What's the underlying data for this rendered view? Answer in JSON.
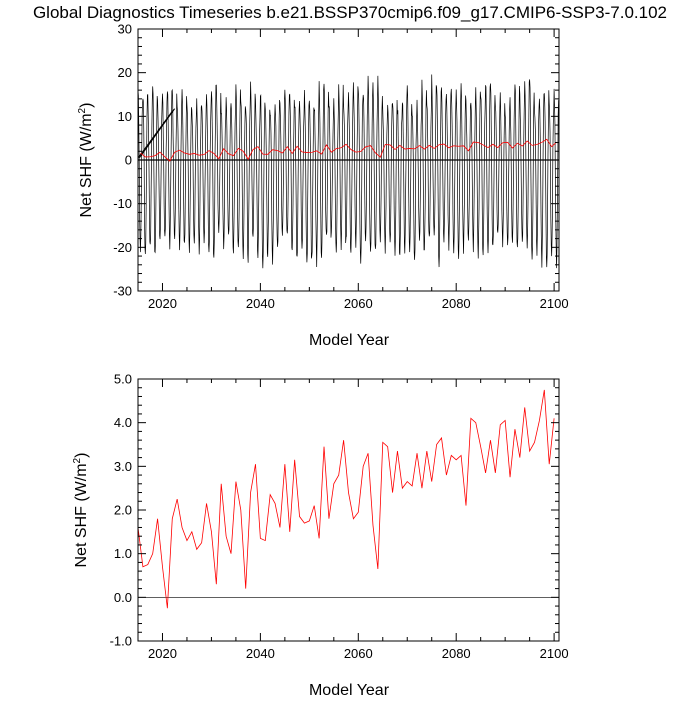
{
  "title": "Global Diagnostics Timeseries b.e21.BSSP370cmip6.f09_g17.CMIP6-SSP3-7.0.102",
  "colors": {
    "annual": "#ff0000",
    "monthly": "#000000",
    "axis": "#000000"
  },
  "chart_data": [
    {
      "type": "line",
      "panel": "top",
      "xlabel": "Model Year",
      "ylabel_main": "Net SHF (W/m",
      "ylabel_sup": "2",
      "ylabel_close": ")",
      "xlim": [
        2015,
        2101
      ],
      "ylim": [
        -30,
        30
      ],
      "xticks": [
        2020,
        2040,
        2060,
        2080,
        2100
      ],
      "xtick_labels": [
        "2020",
        "2040",
        "2060",
        "2080",
        "2100"
      ],
      "yticks": [
        -30,
        -20,
        -10,
        0,
        10,
        20,
        30
      ],
      "ytick_labels": [
        "-30",
        "-20",
        "-10",
        "0",
        "10",
        "20",
        "30"
      ],
      "reference_line": 0,
      "series": [
        {
          "kind": "monthly_cycle",
          "color": "#000000",
          "start_year": 2015,
          "end_year": 2101,
          "peak_range": [
            11,
            18
          ],
          "trough_range": [
            -24,
            -17
          ],
          "spin_up_segment": {
            "x": [
              2015.0,
              2022.2
            ],
            "y": [
              0.5,
              11.5
            ]
          }
        },
        {
          "kind": "annual_mean",
          "color": "#ff0000",
          "x": [
            2015,
            2016,
            2017,
            2018,
            2019,
            2020,
            2021,
            2022,
            2023,
            2024,
            2025,
            2026,
            2027,
            2028,
            2029,
            2030,
            2031,
            2032,
            2033,
            2034,
            2035,
            2036,
            2037,
            2038,
            2039,
            2040,
            2041,
            2042,
            2043,
            2044,
            2045,
            2046,
            2047,
            2048,
            2049,
            2050,
            2051,
            2052,
            2053,
            2054,
            2055,
            2056,
            2057,
            2058,
            2059,
            2060,
            2061,
            2062,
            2063,
            2064,
            2065,
            2066,
            2067,
            2068,
            2069,
            2070,
            2071,
            2072,
            2073,
            2074,
            2075,
            2076,
            2077,
            2078,
            2079,
            2080,
            2081,
            2082,
            2083,
            2084,
            2085,
            2086,
            2087,
            2088,
            2089,
            2090,
            2091,
            2092,
            2093,
            2094,
            2095,
            2096,
            2097,
            2098,
            2099,
            2100
          ],
          "y": [
            1.6,
            0.7,
            0.75,
            1.0,
            1.8,
            0.7,
            -0.25,
            1.8,
            2.25,
            1.6,
            1.3,
            1.5,
            1.1,
            1.25,
            2.15,
            1.5,
            0.3,
            2.6,
            1.4,
            1.0,
            2.65,
            2.0,
            0.2,
            2.4,
            3.05,
            1.35,
            1.3,
            2.35,
            2.15,
            1.6,
            3.05,
            1.5,
            3.15,
            1.85,
            1.7,
            1.75,
            2.1,
            1.35,
            3.45,
            1.8,
            2.6,
            2.8,
            3.6,
            2.4,
            1.8,
            1.95,
            3.0,
            3.3,
            1.65,
            0.65,
            3.55,
            3.45,
            2.4,
            3.35,
            2.5,
            2.65,
            2.55,
            3.3,
            2.5,
            3.35,
            2.65,
            3.5,
            3.65,
            2.8,
            3.25,
            3.15,
            3.25,
            2.1,
            4.1,
            4.0,
            3.45,
            2.85,
            3.6,
            2.85,
            3.95,
            4.05,
            2.75,
            3.85,
            3.2,
            4.35,
            3.35,
            3.55,
            4.05,
            4.75,
            3.05,
            4.1
          ]
        }
      ]
    },
    {
      "type": "line",
      "panel": "bottom",
      "xlabel": "Model Year",
      "ylabel_main": "Net SHF (W/m",
      "ylabel_sup": "2",
      "ylabel_close": ")",
      "xlim": [
        2015,
        2101
      ],
      "ylim": [
        -1.0,
        5.0
      ],
      "xticks": [
        2020,
        2040,
        2060,
        2080,
        2100
      ],
      "xtick_labels": [
        "2020",
        "2040",
        "2060",
        "2080",
        "2100"
      ],
      "yticks": [
        -1,
        0,
        1,
        2,
        3,
        4,
        5
      ],
      "ytick_labels": [
        "-1.0",
        "0.0",
        "1.0",
        "2.0",
        "3.0",
        "4.0",
        "5.0"
      ],
      "reference_line": 0,
      "series_ref": "annual_mean"
    }
  ]
}
